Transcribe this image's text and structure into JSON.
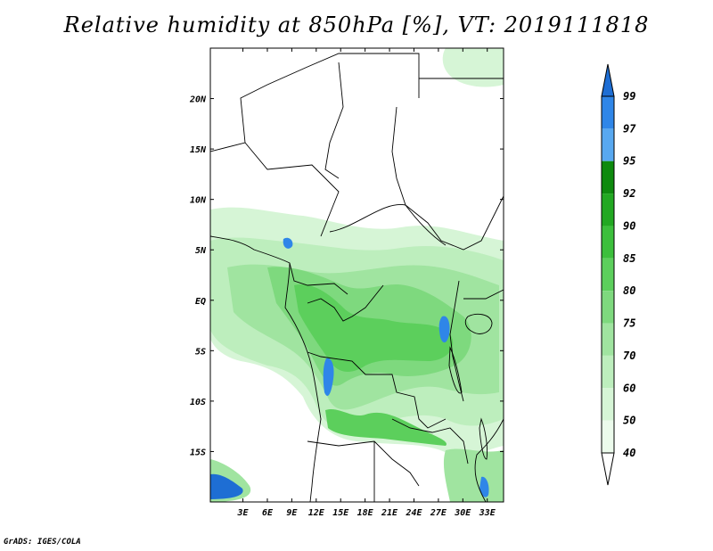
{
  "title": "Relative humidity at 850hPa [%], VT: 2019111818",
  "credit": "GrADS: IGES/COLA",
  "map": {
    "lon_range": [
      -1,
      35
    ],
    "lat_range": [
      -20,
      25
    ],
    "lon_ticks": [
      "3E",
      "6E",
      "9E",
      "12E",
      "15E",
      "18E",
      "21E",
      "24E",
      "27E",
      "30E",
      "33E"
    ],
    "lat_ticks": [
      "20N",
      "15N",
      "10N",
      "5N",
      "EQ",
      "5S",
      "10S",
      "15S"
    ]
  },
  "colorbar": {
    "levels": [
      "99",
      "97",
      "95",
      "92",
      "90",
      "85",
      "80",
      "75",
      "70",
      "60",
      "50",
      "40"
    ],
    "colors": [
      "#1e6ed4",
      "#2f86e8",
      "#58a8f0",
      "#0e8a0e",
      "#22a822",
      "#3cbf3c",
      "#5ccf5c",
      "#7ed97e",
      "#a0e4a0",
      "#bdeebd",
      "#d6f5d6",
      "#ecfbec"
    ]
  }
}
